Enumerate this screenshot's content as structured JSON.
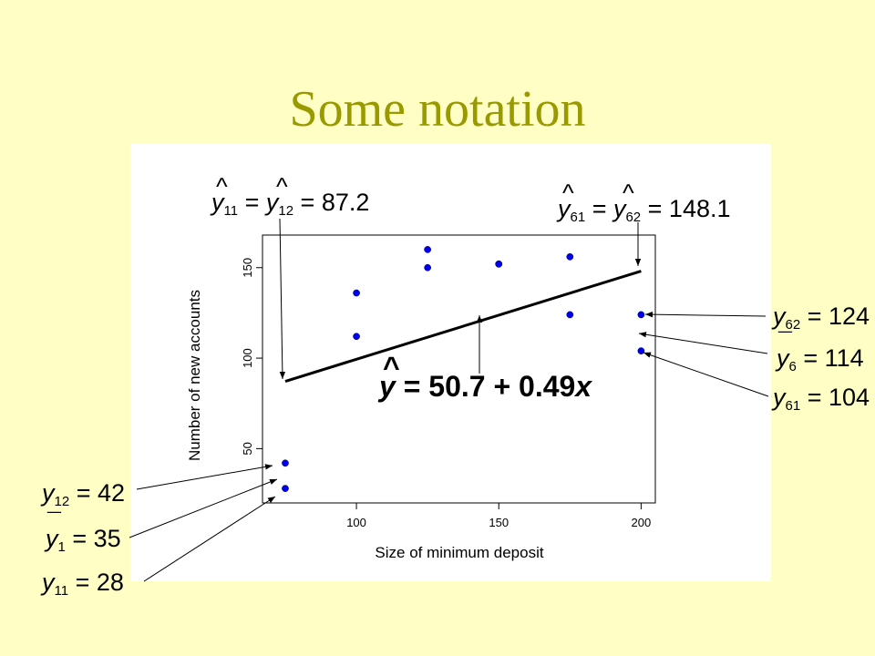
{
  "slide": {
    "title": "Some notation",
    "background": "#ffffc5",
    "title_color": "#999900"
  },
  "chart_data": {
    "type": "scatter",
    "xlabel": "Size of minimum deposit",
    "ylabel": "Number of new accounts",
    "xlim": [
      67,
      205
    ],
    "ylim": [
      20,
      168
    ],
    "x_ticks": [
      100,
      150,
      200
    ],
    "y_ticks": [
      50,
      100,
      150
    ],
    "grid": false,
    "point_color": "#0000ee",
    "points": [
      {
        "x": 75,
        "y": 28
      },
      {
        "x": 75,
        "y": 42
      },
      {
        "x": 100,
        "y": 112
      },
      {
        "x": 100,
        "y": 136
      },
      {
        "x": 125,
        "y": 150
      },
      {
        "x": 125,
        "y": 160
      },
      {
        "x": 150,
        "y": 152
      },
      {
        "x": 150,
        "y": 152
      },
      {
        "x": 175,
        "y": 124
      },
      {
        "x": 175,
        "y": 156
      },
      {
        "x": 200,
        "y": 104
      },
      {
        "x": 200,
        "y": 124
      }
    ],
    "fit_line": {
      "x0": 75,
      "y0": 87.2,
      "x1": 200,
      "y1": 148.1
    },
    "annotations": {
      "fitted_eq": {
        "pre": "y",
        "hat": "^",
        "rest": " = 50.7 + 0.49",
        "var": "x"
      },
      "yhat_75": {
        "a": "y",
        "a_sub": "11",
        "b": "y",
        "b_sub": "12",
        "val": " = 87.2",
        "hat": "^"
      },
      "yhat_200": {
        "a": "y",
        "a_sub": "61",
        "b": "y",
        "b_sub": "62",
        "val": " = 148.1",
        "hat": "^"
      },
      "y62": {
        "var": "y",
        "sub": "62",
        "val": " = 124"
      },
      "ybar6": {
        "var": "y",
        "sub": "6",
        "val": " = 114",
        "bar": "¯"
      },
      "y61": {
        "var": "y",
        "sub": "61",
        "val": " = 104"
      },
      "y12": {
        "var": "y",
        "sub": "12",
        "val": " = 42"
      },
      "ybar1": {
        "var": "y",
        "sub": "1",
        "val": " = 35",
        "bar": "¯"
      },
      "y11": {
        "var": "y",
        "sub": "11",
        "val": " = 28"
      }
    }
  }
}
